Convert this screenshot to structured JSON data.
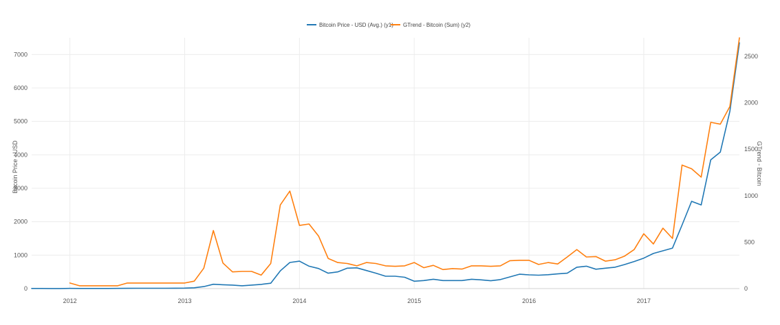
{
  "chart_data": {
    "type": "line",
    "x_axis": {
      "tick_labels": [
        "2012",
        "2013",
        "2014",
        "2015",
        "2016",
        "2017"
      ],
      "range": [
        "2011-09-01",
        "2017-11-01"
      ]
    },
    "y_left": {
      "label": "Bitcoin Price - USD",
      "ticks": [
        0,
        1000,
        2000,
        3000,
        4000,
        5000,
        6000,
        7000
      ],
      "range": [
        0,
        7500
      ]
    },
    "y_right": {
      "label": "GTrend - Bitcoin",
      "ticks": [
        0,
        500,
        1000,
        1500,
        2000,
        2500
      ],
      "range": [
        0,
        2700
      ]
    },
    "grid": true,
    "legend_position": "top-center",
    "series": [
      {
        "name": "Bitcoin Price - USD (Avg.) (y1)",
        "axis": "left",
        "color": "#1f77b4",
        "points": [
          [
            "2011-09",
            5
          ],
          [
            "2011-10",
            4
          ],
          [
            "2011-11",
            3
          ],
          [
            "2011-12",
            3
          ],
          [
            "2012-01",
            6
          ],
          [
            "2012-02",
            5
          ],
          [
            "2012-03",
            5
          ],
          [
            "2012-04",
            5
          ],
          [
            "2012-05",
            5
          ],
          [
            "2012-06",
            6
          ],
          [
            "2012-07",
            8
          ],
          [
            "2012-08",
            10
          ],
          [
            "2012-09",
            11
          ],
          [
            "2012-10",
            11
          ],
          [
            "2012-11",
            11
          ],
          [
            "2012-12",
            13
          ],
          [
            "2013-01",
            15
          ],
          [
            "2013-02",
            25
          ],
          [
            "2013-03",
            60
          ],
          [
            "2013-04",
            130
          ],
          [
            "2013-05",
            115
          ],
          [
            "2013-06",
            105
          ],
          [
            "2013-07",
            85
          ],
          [
            "2013-08",
            105
          ],
          [
            "2013-09",
            125
          ],
          [
            "2013-10",
            160
          ],
          [
            "2013-11",
            530
          ],
          [
            "2013-12",
            780
          ],
          [
            "2014-01",
            820
          ],
          [
            "2014-02",
            670
          ],
          [
            "2014-03",
            600
          ],
          [
            "2014-04",
            460
          ],
          [
            "2014-05",
            500
          ],
          [
            "2014-06",
            610
          ],
          [
            "2014-07",
            620
          ],
          [
            "2014-08",
            540
          ],
          [
            "2014-09",
            460
          ],
          [
            "2014-10",
            370
          ],
          [
            "2014-11",
            370
          ],
          [
            "2014-12",
            340
          ],
          [
            "2015-01",
            220
          ],
          [
            "2015-02",
            240
          ],
          [
            "2015-03",
            280
          ],
          [
            "2015-04",
            240
          ],
          [
            "2015-05",
            240
          ],
          [
            "2015-06",
            240
          ],
          [
            "2015-07",
            280
          ],
          [
            "2015-08",
            260
          ],
          [
            "2015-09",
            235
          ],
          [
            "2015-10",
            270
          ],
          [
            "2015-11",
            350
          ],
          [
            "2015-12",
            430
          ],
          [
            "2016-01",
            410
          ],
          [
            "2016-02",
            400
          ],
          [
            "2016-03",
            415
          ],
          [
            "2016-04",
            440
          ],
          [
            "2016-05",
            460
          ],
          [
            "2016-06",
            640
          ],
          [
            "2016-07",
            670
          ],
          [
            "2016-08",
            580
          ],
          [
            "2016-09",
            610
          ],
          [
            "2016-10",
            640
          ],
          [
            "2016-11",
            720
          ],
          [
            "2016-12",
            810
          ],
          [
            "2017-01",
            910
          ],
          [
            "2017-02",
            1050
          ],
          [
            "2017-03",
            1130
          ],
          [
            "2017-04",
            1210
          ],
          [
            "2017-05",
            1900
          ],
          [
            "2017-06",
            2610
          ],
          [
            "2017-07",
            2500
          ],
          [
            "2017-08",
            3850
          ],
          [
            "2017-09",
            4080
          ],
          [
            "2017-10",
            5300
          ],
          [
            "2017-11",
            7350
          ]
        ]
      },
      {
        "name": "GTrend - Bitcoin (Sum) (y2)",
        "axis": "right",
        "color": "#ff7f0e",
        "points": [
          [
            "2012-01",
            60
          ],
          [
            "2012-02",
            30
          ],
          [
            "2012-03",
            30
          ],
          [
            "2012-04",
            30
          ],
          [
            "2012-05",
            30
          ],
          [
            "2012-06",
            30
          ],
          [
            "2012-07",
            60
          ],
          [
            "2012-08",
            60
          ],
          [
            "2012-09",
            60
          ],
          [
            "2012-10",
            60
          ],
          [
            "2012-11",
            60
          ],
          [
            "2012-12",
            60
          ],
          [
            "2013-01",
            60
          ],
          [
            "2013-02",
            80
          ],
          [
            "2013-03",
            220
          ],
          [
            "2013-04",
            625
          ],
          [
            "2013-05",
            275
          ],
          [
            "2013-06",
            180
          ],
          [
            "2013-07",
            185
          ],
          [
            "2013-08",
            185
          ],
          [
            "2013-09",
            145
          ],
          [
            "2013-10",
            270
          ],
          [
            "2013-11",
            900
          ],
          [
            "2013-12",
            1050
          ],
          [
            "2014-01",
            680
          ],
          [
            "2014-02",
            695
          ],
          [
            "2014-03",
            565
          ],
          [
            "2014-04",
            325
          ],
          [
            "2014-05",
            280
          ],
          [
            "2014-06",
            270
          ],
          [
            "2014-07",
            245
          ],
          [
            "2014-08",
            280
          ],
          [
            "2014-09",
            270
          ],
          [
            "2014-10",
            245
          ],
          [
            "2014-11",
            240
          ],
          [
            "2014-12",
            245
          ],
          [
            "2015-01",
            280
          ],
          [
            "2015-02",
            225
          ],
          [
            "2015-03",
            250
          ],
          [
            "2015-04",
            205
          ],
          [
            "2015-05",
            215
          ],
          [
            "2015-06",
            210
          ],
          [
            "2015-07",
            245
          ],
          [
            "2015-08",
            245
          ],
          [
            "2015-09",
            240
          ],
          [
            "2015-10",
            245
          ],
          [
            "2015-11",
            300
          ],
          [
            "2015-12",
            305
          ],
          [
            "2016-01",
            305
          ],
          [
            "2016-02",
            260
          ],
          [
            "2016-03",
            280
          ],
          [
            "2016-04",
            265
          ],
          [
            "2016-05",
            340
          ],
          [
            "2016-06",
            420
          ],
          [
            "2016-07",
            340
          ],
          [
            "2016-08",
            345
          ],
          [
            "2016-09",
            295
          ],
          [
            "2016-10",
            310
          ],
          [
            "2016-11",
            350
          ],
          [
            "2016-12",
            420
          ],
          [
            "2017-01",
            590
          ],
          [
            "2017-02",
            480
          ],
          [
            "2017-03",
            650
          ],
          [
            "2017-04",
            540
          ],
          [
            "2017-05",
            1330
          ],
          [
            "2017-06",
            1290
          ],
          [
            "2017-07",
            1200
          ],
          [
            "2017-08",
            1790
          ],
          [
            "2017-09",
            1770
          ],
          [
            "2017-10",
            1960
          ],
          [
            "2017-11",
            2700
          ]
        ]
      }
    ]
  }
}
